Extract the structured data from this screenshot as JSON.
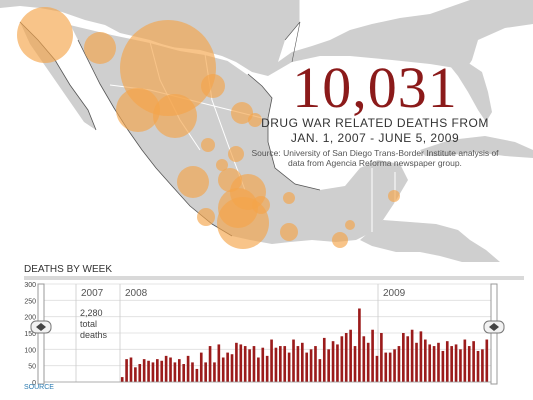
{
  "headline": {
    "total": "10,031",
    "line1": "DRUG WAR RELATED DEATHS FROM",
    "line2": "JAN. 1, 2007 - JUNE 5, 2009",
    "source_note": "Source: University of San Diego Trans-Border Institute analysis of data from Agencia Reforma newspaper group."
  },
  "colors": {
    "bubble": "#f5a54a",
    "bar": "#9b1b1b",
    "headline": "#8b1a1a",
    "link": "#2a7ab0"
  },
  "chart_data": {
    "type": "bar",
    "title": "DEATHS BY WEEK",
    "ylim": [
      0,
      300
    ],
    "yticks": [
      "0",
      "50",
      "100",
      "150",
      "200",
      "250",
      "300"
    ],
    "year_labels": [
      "2007",
      "2008",
      "2009"
    ],
    "annotation": [
      "2,280",
      "total",
      "deaths"
    ],
    "source_label": "SOURCE",
    "values": [
      15,
      70,
      75,
      45,
      55,
      70,
      65,
      60,
      70,
      65,
      80,
      75,
      60,
      70,
      55,
      80,
      60,
      40,
      90,
      60,
      110,
      60,
      115,
      75,
      90,
      85,
      120,
      115,
      110,
      100,
      110,
      75,
      105,
      80,
      130,
      105,
      110,
      110,
      90,
      130,
      110,
      120,
      90,
      100,
      110,
      70,
      135,
      100,
      125,
      115,
      140,
      150,
      160,
      110,
      225,
      140,
      120,
      160,
      80,
      150,
      90,
      90,
      100,
      110,
      150,
      140,
      160,
      120,
      155,
      130,
      115,
      110,
      120,
      95,
      125,
      110,
      115,
      100,
      130,
      110,
      125,
      95,
      100,
      130
    ]
  }
}
